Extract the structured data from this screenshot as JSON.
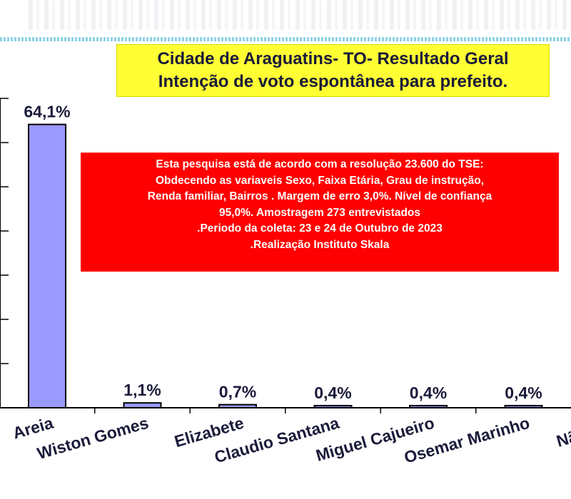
{
  "header": {
    "title_line1": "Cidade de Araguatins- TO- Resultado Geral",
    "title_line2": "Intenção de voto espontânea para prefeito."
  },
  "note": {
    "lines": [
      "Esta pesquisa está de acordo com a resolução 23.600 do TSE:",
      "Obdecendo as variaveis Sexo, Faixa Etária, Grau de instrução,",
      "Renda familiar, Bairros . Margem de erro 3,0%. Nível de confiança",
      "95,0%. Amostragem 273 entrevistados",
      ".Periodo da coleta: 23 e 24 de Outubro de 2023",
      ".Realização Instituto Skala"
    ]
  },
  "colors": {
    "bar_fill": "#9999ff",
    "bar_stroke": "#000000",
    "title_bg": "#ffff33",
    "note_bg": "#ff0000",
    "label_color": "#1a1a3a"
  },
  "chart_data": {
    "type": "bar",
    "title": "Cidade de Araguatins- TO- Resultado Geral",
    "subtitle": "Intenção de voto espontânea para prefeito.",
    "categories": [
      "Areia",
      "Wiston Gomes",
      "Elizabete",
      "Claudio Santana",
      "Miguel Cajueiro",
      "Osemar Marinho",
      "Não opin"
    ],
    "values": [
      64.1,
      1.1,
      0.7,
      0.4,
      0.4,
      0.4,
      null
    ],
    "data_labels": [
      "64,1%",
      "1,1%",
      "0,7%",
      "0,4%",
      "0,4%",
      "0,4%",
      ""
    ],
    "ylim": [
      0,
      70
    ],
    "yticks": [
      0,
      10,
      20,
      30,
      40,
      50,
      60,
      70
    ],
    "xlabel": "",
    "ylabel": "",
    "grid": false,
    "legend": "none"
  }
}
